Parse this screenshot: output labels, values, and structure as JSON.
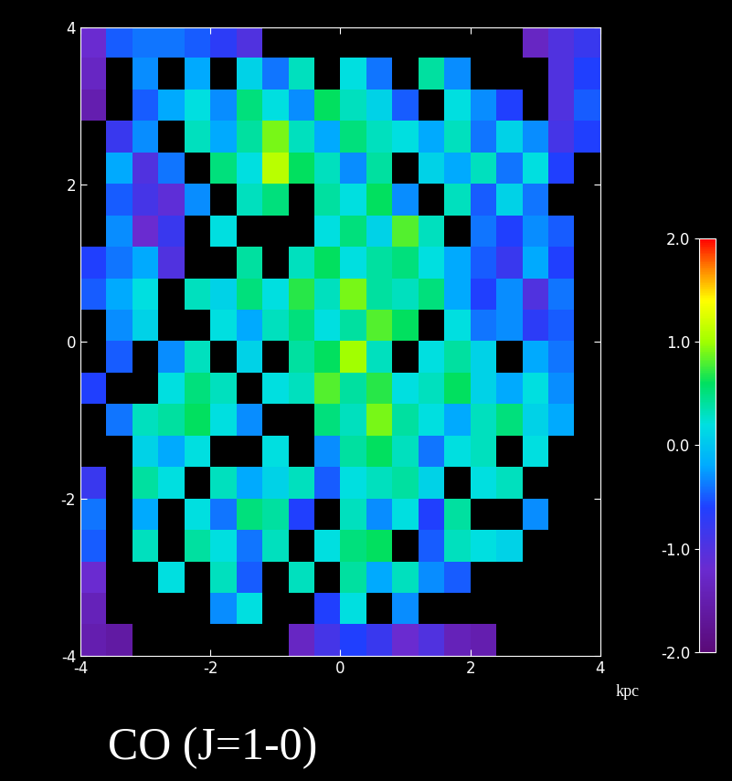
{
  "chart_data": {
    "type": "heatmap",
    "title": "CO (J=1-0)",
    "xlabel": "kpc",
    "xlim": [
      -4,
      4
    ],
    "ylim": [
      -4,
      4
    ],
    "xticks": [
      -4,
      -2,
      0,
      2,
      4
    ],
    "yticks": [
      -4,
      -2,
      0,
      2,
      4
    ],
    "color_range": [
      -2,
      2
    ],
    "color_ticks": [
      {
        "value": -2,
        "label": "-2.0"
      },
      {
        "value": -1,
        "label": "-1.0"
      },
      {
        "value": 0,
        "label": "0.0"
      },
      {
        "value": 1,
        "label": "1.0"
      },
      {
        "value": 2,
        "label": "2.0"
      }
    ],
    "cells": [
      [
        -1.2,
        -0.5,
        -0.4,
        -0.4,
        -0.5,
        -0.7,
        -1.0,
        null,
        null,
        null,
        null,
        null,
        null,
        null,
        null,
        null,
        null,
        -1.3,
        -1.0,
        -0.8
      ],
      [
        -1.3,
        null,
        -0.3,
        null,
        -0.2,
        null,
        0.1,
        -0.4,
        0.3,
        null,
        0.2,
        -0.4,
        null,
        0.4,
        -0.3,
        null,
        null,
        null,
        -1.0,
        -0.6
      ],
      [
        -1.5,
        null,
        -0.5,
        -0.2,
        0.2,
        -0.3,
        0.5,
        0.2,
        -0.3,
        0.6,
        0.3,
        0.1,
        -0.5,
        null,
        0.2,
        -0.3,
        -0.6,
        null,
        -1.0,
        -0.5
      ],
      [
        null,
        -0.8,
        -0.3,
        null,
        0.3,
        -0.2,
        0.4,
        0.9,
        0.3,
        -0.2,
        0.5,
        0.3,
        0.2,
        -0.2,
        0.3,
        -0.4,
        0.1,
        -0.3,
        -0.9,
        -0.6
      ],
      [
        null,
        -0.2,
        -1.0,
        -0.4,
        null,
        0.5,
        0.2,
        1.1,
        0.6,
        0.3,
        -0.3,
        0.4,
        null,
        0.1,
        -0.2,
        0.3,
        -0.4,
        0.2,
        -0.6,
        null
      ],
      [
        null,
        -0.5,
        -0.9,
        -1.1,
        -0.3,
        null,
        0.3,
        0.5,
        null,
        0.4,
        0.2,
        0.6,
        -0.3,
        null,
        0.3,
        -0.5,
        0.1,
        -0.4,
        null,
        null
      ],
      [
        null,
        -0.3,
        -1.2,
        -0.8,
        null,
        0.2,
        null,
        null,
        null,
        0.2,
        0.5,
        0.1,
        0.8,
        0.3,
        null,
        -0.4,
        -0.6,
        -0.3,
        -0.5,
        null
      ],
      [
        -0.6,
        -0.4,
        -0.2,
        -1.0,
        null,
        null,
        0.4,
        null,
        0.3,
        0.6,
        0.2,
        0.4,
        0.5,
        0.2,
        -0.2,
        -0.5,
        -0.8,
        -0.2,
        -0.6,
        null
      ],
      [
        -0.5,
        -0.2,
        0.2,
        null,
        0.3,
        0.1,
        0.5,
        0.2,
        0.7,
        0.3,
        0.9,
        0.4,
        0.3,
        0.5,
        -0.2,
        -0.6,
        -0.3,
        -1.0,
        -0.4,
        null
      ],
      [
        null,
        -0.3,
        0.1,
        null,
        null,
        0.2,
        -0.2,
        0.3,
        0.5,
        0.2,
        0.4,
        0.8,
        0.6,
        null,
        0.2,
        -0.4,
        -0.3,
        -0.7,
        -0.5,
        null
      ],
      [
        null,
        -0.5,
        null,
        -0.3,
        0.3,
        null,
        0.1,
        null,
        0.4,
        0.6,
        1.0,
        0.3,
        null,
        0.2,
        0.4,
        0.1,
        null,
        -0.2,
        -0.4,
        null
      ],
      [
        -0.6,
        null,
        null,
        0.2,
        0.5,
        0.3,
        null,
        0.2,
        0.3,
        0.8,
        0.4,
        0.7,
        0.2,
        0.3,
        0.6,
        0.1,
        -0.2,
        0.2,
        -0.3,
        null
      ],
      [
        null,
        -0.4,
        0.3,
        0.4,
        0.6,
        0.2,
        -0.3,
        null,
        null,
        0.5,
        0.3,
        0.9,
        0.4,
        0.2,
        -0.2,
        0.3,
        0.5,
        0.1,
        -0.2,
        null
      ],
      [
        null,
        null,
        0.1,
        -0.2,
        0.2,
        null,
        null,
        0.2,
        null,
        -0.3,
        0.4,
        0.6,
        0.3,
        -0.4,
        0.2,
        0.3,
        null,
        0.2,
        null,
        null
      ],
      [
        -0.8,
        null,
        0.4,
        0.2,
        null,
        0.3,
        -0.2,
        0.1,
        0.3,
        -0.5,
        0.2,
        0.3,
        0.4,
        0.1,
        null,
        0.2,
        0.3,
        null,
        null,
        null
      ],
      [
        -0.4,
        null,
        -0.2,
        null,
        0.2,
        -0.4,
        0.5,
        0.4,
        -0.6,
        null,
        0.3,
        -0.3,
        0.2,
        -0.6,
        0.4,
        null,
        null,
        -0.3,
        null,
        null
      ],
      [
        -0.5,
        null,
        0.3,
        null,
        0.4,
        0.2,
        -0.4,
        0.3,
        null,
        0.2,
        0.5,
        0.6,
        null,
        -0.5,
        0.3,
        0.2,
        0.1,
        null,
        null,
        null
      ],
      [
        -1.2,
        null,
        null,
        0.2,
        null,
        0.3,
        -0.5,
        null,
        0.3,
        null,
        0.4,
        -0.2,
        0.3,
        -0.3,
        -0.5,
        null,
        null,
        null,
        null,
        null
      ],
      [
        -1.4,
        null,
        null,
        null,
        null,
        -0.3,
        0.2,
        null,
        null,
        -0.6,
        0.2,
        null,
        -0.3,
        null,
        null,
        null,
        null,
        null,
        null,
        null
      ],
      [
        -1.5,
        -1.6,
        null,
        null,
        null,
        null,
        null,
        null,
        -1.3,
        -0.9,
        -0.6,
        -0.8,
        -1.2,
        -1.0,
        -1.4,
        -1.5,
        null,
        null,
        null,
        null
      ]
    ]
  }
}
